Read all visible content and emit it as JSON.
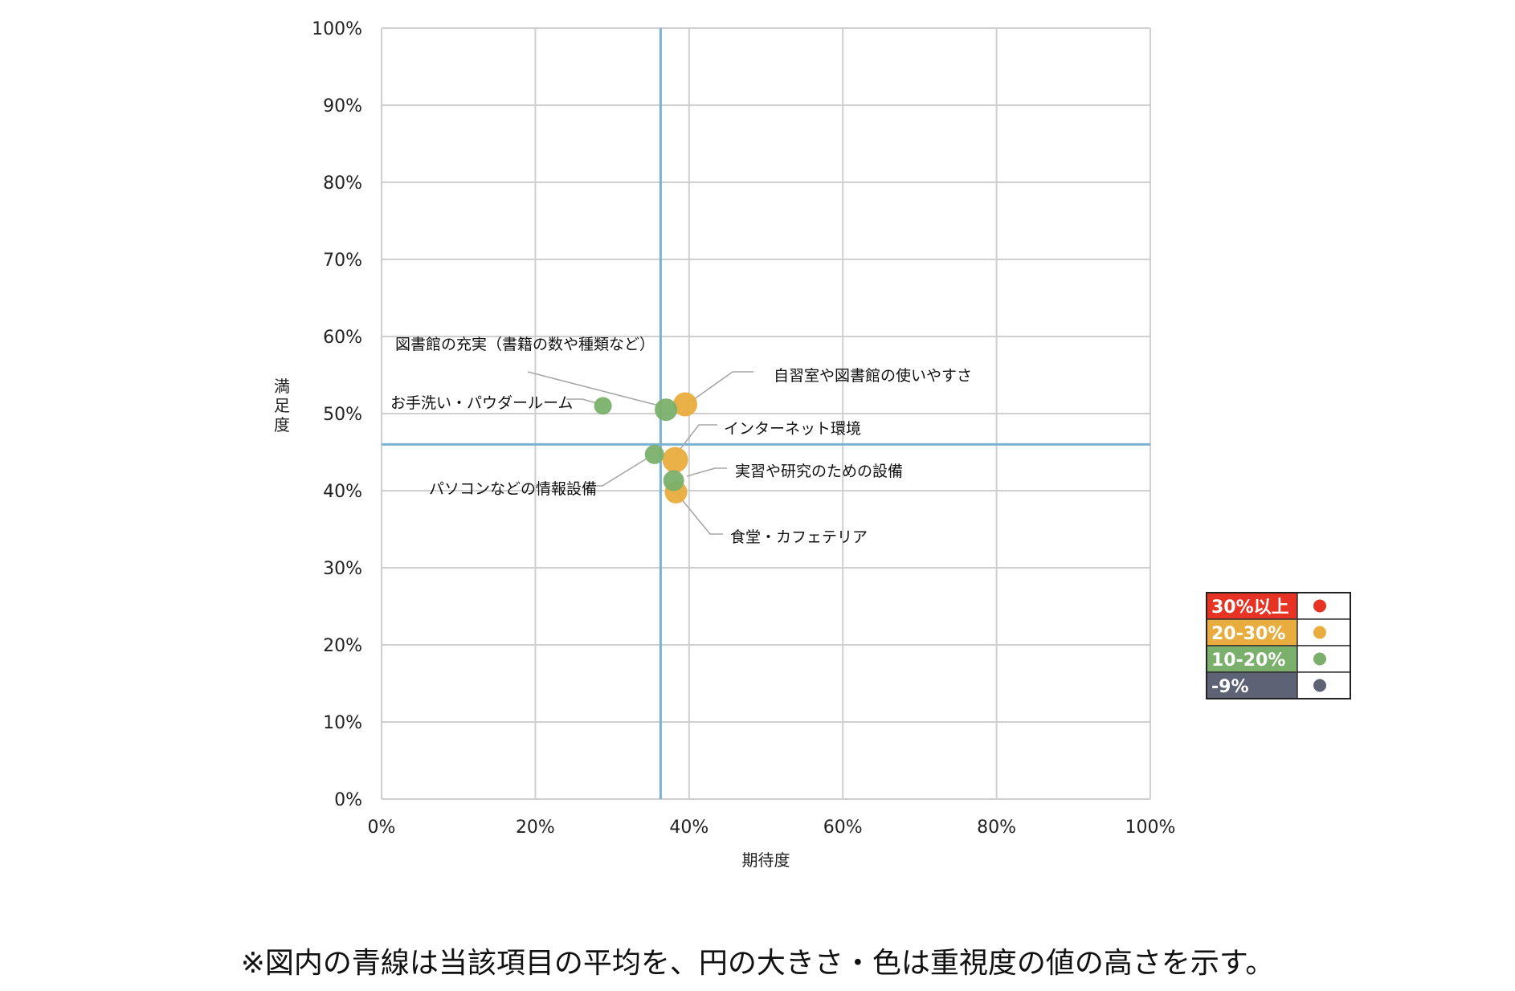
{
  "chart_data": {
    "type": "scatter",
    "xlabel": "期待度",
    "ylabel": "満足度",
    "xlim": [
      0,
      100
    ],
    "ylim": [
      0,
      100
    ],
    "x_ticks": [
      "0%",
      "20%",
      "40%",
      "60%",
      "80%",
      "100%"
    ],
    "y_ticks": [
      "0%",
      "10%",
      "20%",
      "30%",
      "40%",
      "50%",
      "60%",
      "70%",
      "80%",
      "90%",
      "100%"
    ],
    "grid": true,
    "reference_lines": {
      "x_mean": 36.3,
      "y_mean": 46.0,
      "color": "#7ab2d2"
    },
    "points": [
      {
        "label": "図書館の充実（書籍の数や種類など）",
        "x": 37.0,
        "y": 50.5,
        "group": "10-20%"
      },
      {
        "label": "自習室や図書館の使いやすさ",
        "x": 39.5,
        "y": 51.2,
        "group": "20-30%"
      },
      {
        "label": "お手洗い・パウダールーム",
        "x": 28.8,
        "y": 51.0,
        "group": "10-20%"
      },
      {
        "label": "インターネット環境",
        "x": 38.2,
        "y": 44.0,
        "group": "20-30%"
      },
      {
        "label": "パソコンなどの情報設備",
        "x": 35.5,
        "y": 44.7,
        "group": "10-20%"
      },
      {
        "label": "実習や研究のための設備",
        "x": 38.0,
        "y": 41.3,
        "group": "10-20%"
      },
      {
        "label": "食堂・カフェテリア",
        "x": 38.3,
        "y": 39.8,
        "group": "20-30%"
      }
    ],
    "legend": {
      "placement": "right",
      "items": [
        {
          "label": "30%以上",
          "color": "#e63323"
        },
        {
          "label": "20-30%",
          "color": "#e9ad3f"
        },
        {
          "label": "10-20%",
          "color": "#7bb06c"
        },
        {
          "label": "-9%",
          "color": "#5d6275"
        }
      ]
    },
    "group_colors": {
      "30%以上": "#e63323",
      "20-30%": "#e9ad3f",
      "10-20%": "#7bb06c",
      "-9%": "#5d6275"
    }
  },
  "footnote": "※図内の青線は当該項目の平均を、円の大きさ・色は重視度の値の高さを示す。"
}
